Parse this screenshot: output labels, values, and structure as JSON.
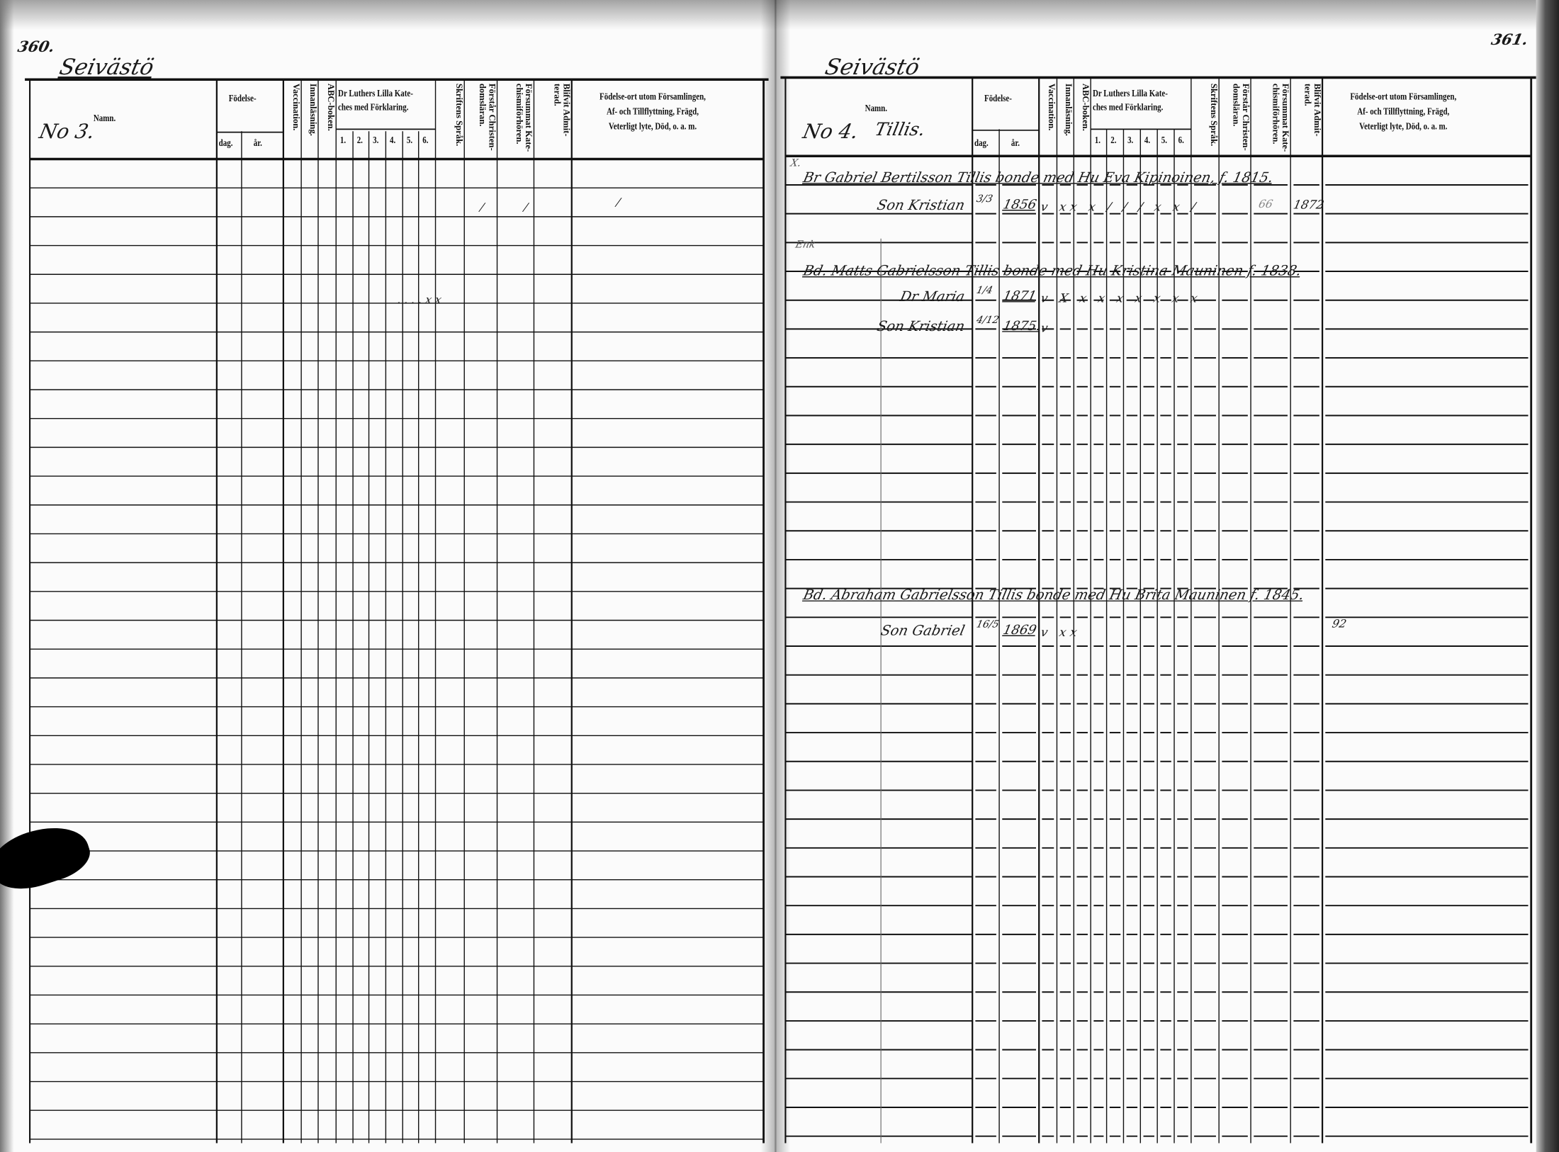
{
  "pages": [
    {
      "page_number": "360.",
      "place": "Seivästö",
      "household_no": "No 3.",
      "household_name": "",
      "headers": {
        "namn": "Namn.",
        "fodelse": "Födelse-",
        "dag": "dag.",
        "ar": "år.",
        "vaccination": "Vaccination.",
        "innanlasning": "Innanläsning.",
        "abc": "ABC-boken.",
        "luther": "Dr Luthers Lilla Kate-\nches med Förklaring.",
        "luther_parts": [
          "1.",
          "2.",
          "3.",
          "4.",
          "5.",
          "6."
        ],
        "skriftens": "Skriftens Språk.",
        "forstar": "Förstår Christen-\ndomsläran.",
        "forsummat": "Försummat Kate-\nchismiförhören.",
        "blifvit": "Blifvit Admit-\nterad.",
        "remarks": "Födelse-ort utom Församlingen,\nAf- och Tillflyttning, Frägd,\nVeterligt lyte, Död, o. a. m."
      },
      "notes": [
        "/",
        "/",
        "/",
        ". . . . x x"
      ]
    },
    {
      "page_number": "361.",
      "place": "Seivästö",
      "household_no": "No 4.",
      "household_name": "Tillis.",
      "headers": {
        "namn": "Namn.",
        "fodelse": "Födelse-",
        "dag": "dag.",
        "ar": "år.",
        "vaccination": "Vaccination.",
        "innanlasning": "Innanläsning.",
        "abc": "ABC-boken.",
        "luther": "Dr Luthers Lilla Kate-\nches med Förklaring.",
        "luther_parts": [
          "1.",
          "2.",
          "3.",
          "4.",
          "5.",
          "6."
        ],
        "skriftens": "Skriftens Språk.",
        "forstar": "Förstår Christen-\ndomsläran.",
        "forsummat": "Försummat Kate-\nchismiförhören.",
        "blifvit": "Blifvit Admit-\nterad.",
        "remarks": "Födelse-ort utom Församlingen,\nAf- och Tillflyttning, Frägd,\nVeterligt lyte, Död, o. a. m."
      },
      "entries": [
        {
          "prefix": "X.",
          "line": "Br Gabriel Bertilsson Tillis bonde med Hu Eva Kipinoinen, f. 1815."
        },
        {
          "name": "Son Kristian",
          "dag": "3/3",
          "ar": "1856",
          "marks": "v xx x / / / x x /",
          "forsummat": "66",
          "blifvit": "1872"
        },
        {
          "prefix": "Enk",
          "line": "Bd. Matts Gabrielsson Tillis bonde med Hu Kristina Mauninen f. 1838."
        },
        {
          "name": "Dr Maria",
          "dag": "1/4",
          "ar": "1871",
          "marks": "v X x x x x x x x"
        },
        {
          "name": "Son Kristian",
          "dag": "4/12",
          "ar": "1875.",
          "marks": "v"
        },
        {
          "line": "Bd. Abraham Gabrielsson Tillis bonde med Hu Brita Mauninen f. 1845."
        },
        {
          "name": "Son Gabriel",
          "dag": "16/5",
          "ar": "1869",
          "marks": "v xx",
          "remark": "92"
        }
      ]
    }
  ],
  "colors": {
    "ink": "#111111",
    "paper": "#fbfbfb"
  }
}
